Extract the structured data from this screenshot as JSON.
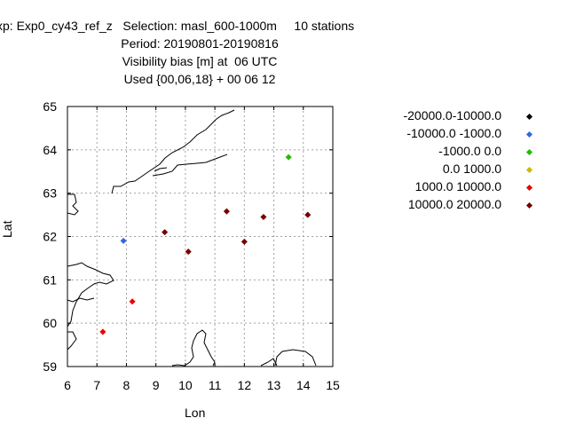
{
  "chart_data": {
    "type": "scatter",
    "title_lines": [
      "xp: Exp0_cy43_ref_z   Selection: masl_600-1000m     10 stations",
      "Period: 20190801-20190816",
      "Visibility bias [m] at  06 UTC",
      "Used {00,06,18} + 00 06 12"
    ],
    "xlabel": "Lon",
    "ylabel": "Lat",
    "xlim": [
      6,
      15
    ],
    "ylim": [
      59,
      65
    ],
    "xticks": [
      "6",
      "7",
      "8",
      "9",
      "10",
      "11",
      "12",
      "13",
      "14",
      "15"
    ],
    "yticks": [
      "59",
      "60",
      "61",
      "62",
      "63",
      "64",
      "65"
    ],
    "grid": true,
    "legend_position": "right",
    "series": [
      {
        "name": "-20000.0-10000.0",
        "color": "#000000",
        "points": []
      },
      {
        "name": "-10000.0 -1000.0",
        "color": "#3366dd",
        "points": [
          [
            7.9,
            61.9
          ]
        ]
      },
      {
        "name": "-1000.0 0.0",
        "color": "#22bb00",
        "points": [
          [
            13.5,
            63.83
          ]
        ]
      },
      {
        "name": "0.0 1000.0",
        "color": "#ccbb00",
        "points": []
      },
      {
        "name": "1000.0 10000.0",
        "color": "#ee0000",
        "points": [
          [
            8.2,
            60.5
          ],
          [
            7.2,
            59.8
          ]
        ]
      },
      {
        "name": "10000.0 20000.0",
        "color": "#770000",
        "points": [
          [
            9.3,
            62.1
          ],
          [
            10.1,
            61.65
          ],
          [
            11.4,
            62.58
          ],
          [
            12.0,
            61.88
          ],
          [
            12.65,
            62.45
          ],
          [
            14.15,
            62.5
          ]
        ]
      }
    ]
  }
}
